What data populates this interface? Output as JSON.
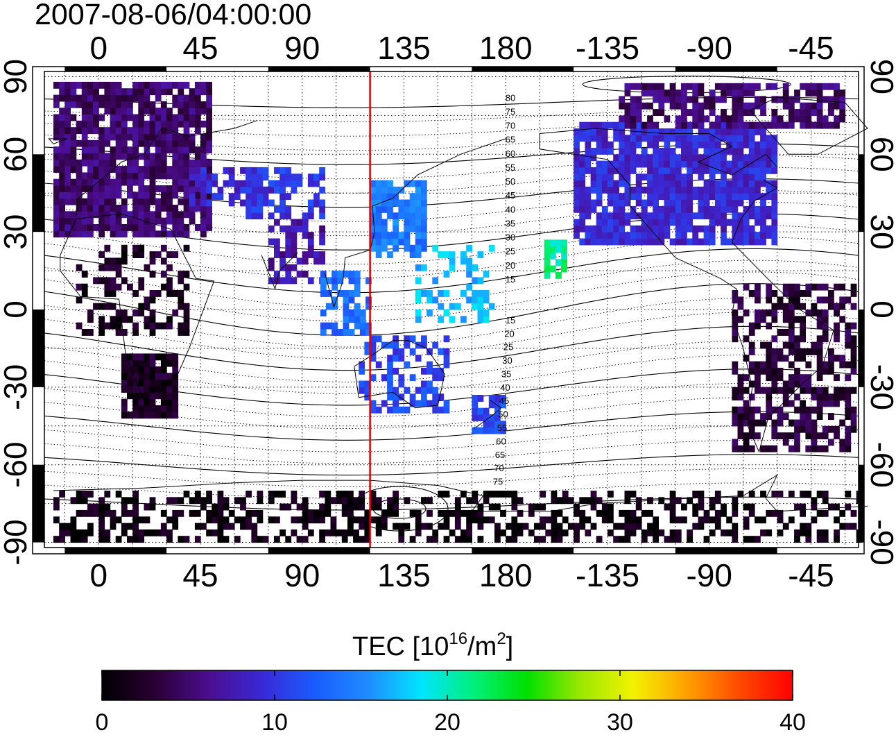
{
  "timestamp": "2007-08-06/04:00:00",
  "map": {
    "lon_ticks_top": [
      "0",
      "45",
      "90",
      "135",
      "180",
      "-135",
      "-90",
      "-45"
    ],
    "lon_ticks_bottom": [
      "0",
      "45",
      "90",
      "135",
      "180",
      "-135",
      "-90",
      "-45"
    ],
    "lat_ticks_left": [
      "90",
      "60",
      "30",
      "0",
      "-30",
      "-60",
      "-90"
    ],
    "lat_ticks_right": [
      "90",
      "60",
      "30",
      "0",
      "-30",
      "-60",
      "-90"
    ],
    "lon_tick_values": [
      0,
      45,
      90,
      135,
      180,
      225,
      270,
      315
    ],
    "lat_tick_values": [
      90,
      60,
      30,
      0,
      -30,
      -60,
      -90
    ],
    "lon_range": [
      -24,
      336
    ],
    "lat_range": [
      -92,
      92
    ],
    "subsolar_meridian_lon": 120,
    "subsolar_line_color": "#dd0000",
    "magnetic_latitude_labels_north": [
      "80",
      "75",
      "70",
      "65",
      "60",
      "55",
      "50",
      "45",
      "40",
      "35",
      "30",
      "25",
      "20",
      "15"
    ],
    "magnetic_latitude_labels_south": [
      "15",
      "20",
      "25",
      "30",
      "35",
      "40",
      "45",
      "50",
      "55",
      "60",
      "65",
      "70",
      "75"
    ]
  },
  "colorbar": {
    "title_main": "TEC  [10",
    "title_sup1": "16",
    "title_mid": "/m",
    "title_sup2": "2",
    "title_end": "]",
    "ticks": [
      "0",
      "10",
      "20",
      "30",
      "40"
    ],
    "tick_values": [
      0,
      10,
      20,
      30,
      40
    ],
    "range": [
      0,
      40
    ],
    "colors": [
      "#000000",
      "#2a0034",
      "#4b0d8e",
      "#3a28d6",
      "#1a5cff",
      "#1f8bff",
      "#00e4ff",
      "#00f07a",
      "#00e000",
      "#9ae800",
      "#f2f200",
      "#ffa000",
      "#ff4a00",
      "#ff0000"
    ]
  },
  "tec_regions": [
    {
      "name": "europe",
      "lon": [
        -20,
        50
      ],
      "lat": [
        28,
        86
      ],
      "tec": 5,
      "density": 0.85
    },
    {
      "name": "europe-east",
      "lon": [
        40,
        80
      ],
      "lat": [
        40,
        55
      ],
      "tec": 9,
      "density": 0.6
    },
    {
      "name": "africa-north",
      "lon": [
        -10,
        40
      ],
      "lat": [
        -10,
        25
      ],
      "tec": 2,
      "density": 0.35
    },
    {
      "name": "africa-south",
      "lon": [
        10,
        35
      ],
      "lat": [
        -42,
        -18
      ],
      "tec": 2,
      "density": 0.9
    },
    {
      "name": "central-asia",
      "lon": [
        65,
        100
      ],
      "lat": [
        35,
        55
      ],
      "tec": 10,
      "density": 0.55
    },
    {
      "name": "india",
      "lon": [
        75,
        100
      ],
      "lat": [
        10,
        35
      ],
      "tec": 7,
      "density": 0.6
    },
    {
      "name": "southeast-asia",
      "lon": [
        98,
        120
      ],
      "lat": [
        -10,
        15
      ],
      "tec": 13,
      "density": 0.6
    },
    {
      "name": "japan-china",
      "lon": [
        120,
        145
      ],
      "lat": [
        20,
        50
      ],
      "tec": 14,
      "density": 0.85
    },
    {
      "name": "pacific-west",
      "lon": [
        140,
        175
      ],
      "lat": [
        -5,
        25
      ],
      "tec": 17,
      "density": 0.35
    },
    {
      "name": "pacific-hawaii",
      "lon": [
        197,
        205
      ],
      "lat": [
        12,
        27
      ],
      "tec": 21,
      "density": 0.6
    },
    {
      "name": "australia",
      "lon": [
        115,
        155
      ],
      "lat": [
        -40,
        -10
      ],
      "tec": 11,
      "density": 0.45
    },
    {
      "name": "new-zealand",
      "lon": [
        165,
        180
      ],
      "lat": [
        -48,
        -34
      ],
      "tec": 11,
      "density": 0.85
    },
    {
      "name": "north-america",
      "lon": [
        210,
        300
      ],
      "lat": [
        25,
        72
      ],
      "tec": 9,
      "density": 0.85
    },
    {
      "name": "north-canada",
      "lon": [
        230,
        330
      ],
      "lat": [
        70,
        86
      ],
      "tec": 5,
      "density": 0.7
    },
    {
      "name": "south-america",
      "lon": [
        280,
        335
      ],
      "lat": [
        -55,
        10
      ],
      "tec": 3,
      "density": 0.55
    },
    {
      "name": "antarctica",
      "lon": [
        -20,
        336
      ],
      "lat": [
        -90,
        -72
      ],
      "tec": 1,
      "density": 0.45
    }
  ]
}
